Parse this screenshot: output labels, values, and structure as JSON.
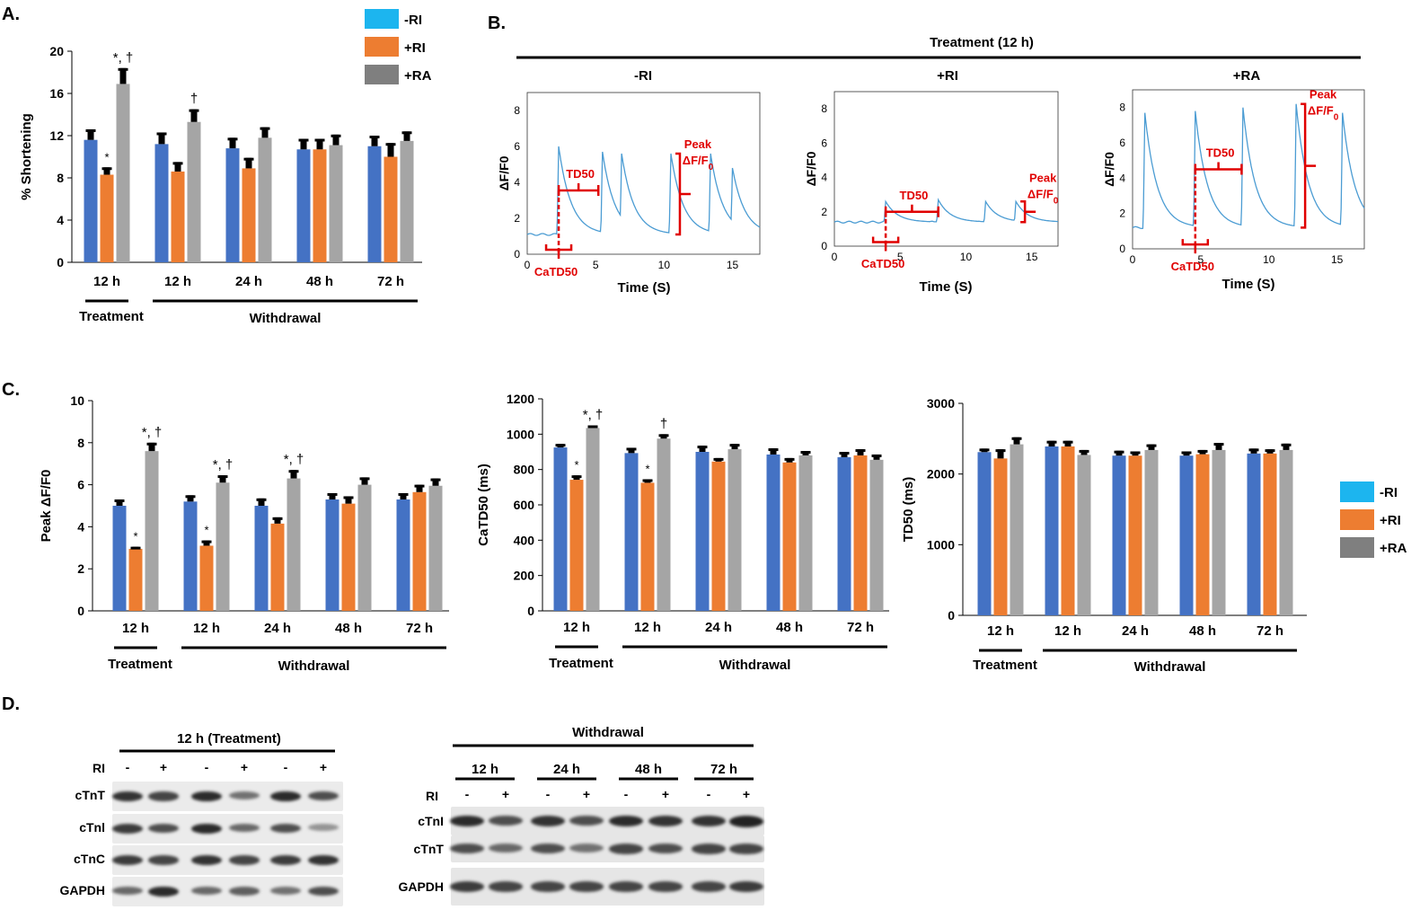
{
  "colors": {
    "blue": "#4472C4",
    "orange": "#ED7D31",
    "gray": "#A5A5A5",
    "legend_blue": "#1CB5EF",
    "legend_gray": "#7F7F7F",
    "red": "#E00000",
    "trace": "#4B9CD3"
  },
  "panel_labels": {
    "a": "A.",
    "b": "B.",
    "c": "C.",
    "d": "D."
  },
  "legend": [
    {
      "label": "-RI"
    },
    {
      "label": "+RI"
    },
    {
      "label": "+RA"
    }
  ],
  "groups": {
    "categories": [
      "12 h",
      "12 h",
      "24 h",
      "48 h",
      "72 h"
    ],
    "treatment": "Treatment",
    "withdrawal": "Withdrawal"
  },
  "chart_data": [
    {
      "id": "shortening",
      "type": "bar",
      "ylabel": "% Shortening",
      "ylim": [
        0,
        20
      ],
      "yticks": [
        0,
        4,
        8,
        12,
        16,
        20
      ],
      "categories": [
        "12 h",
        "12 h",
        "24 h",
        "48 h",
        "72 h"
      ],
      "series": [
        {
          "name": "-RI",
          "values": [
            11.6,
            11.2,
            10.8,
            10.7,
            11.0
          ],
          "errors": [
            1.0,
            1.1,
            1.0,
            1.0,
            1.0
          ]
        },
        {
          "name": "+RI",
          "values": [
            8.3,
            8.6,
            8.9,
            10.7,
            10.0
          ],
          "errors": [
            0.7,
            0.9,
            1.0,
            1.0,
            1.3
          ]
        },
        {
          "name": "+RA",
          "values": [
            16.9,
            13.3,
            11.8,
            11.1,
            11.5
          ],
          "errors": [
            1.5,
            1.2,
            1.0,
            1.0,
            0.9
          ]
        }
      ],
      "annotations": [
        {
          "category": 0,
          "series": 1,
          "text": "*"
        },
        {
          "category": 0,
          "series": 2,
          "text": "*, †"
        },
        {
          "category": 1,
          "series": 2,
          "text": "†"
        }
      ]
    },
    {
      "id": "peak",
      "type": "bar",
      "ylabel": "Peak ΔF/F0",
      "ylim": [
        0,
        10
      ],
      "yticks": [
        0,
        2,
        4,
        6,
        8,
        10
      ],
      "categories": [
        "12 h",
        "12 h",
        "24 h",
        "48 h",
        "72 h"
      ],
      "series": [
        {
          "name": "-RI",
          "values": [
            5.0,
            5.2,
            5.0,
            5.3,
            5.3
          ],
          "errors": [
            0.3,
            0.3,
            0.35,
            0.3,
            0.3
          ]
        },
        {
          "name": "+RI",
          "values": [
            2.95,
            3.1,
            4.15,
            5.1,
            5.65
          ],
          "errors": [
            0.1,
            0.25,
            0.3,
            0.35,
            0.35
          ]
        },
        {
          "name": "+RA",
          "values": [
            7.6,
            6.1,
            6.3,
            6.0,
            5.95
          ],
          "errors": [
            0.4,
            0.35,
            0.4,
            0.35,
            0.35
          ]
        }
      ],
      "annotations": [
        {
          "category": 0,
          "series": 1,
          "text": "*"
        },
        {
          "category": 0,
          "series": 2,
          "text": "*, †"
        },
        {
          "category": 1,
          "series": 1,
          "text": "*"
        },
        {
          "category": 1,
          "series": 2,
          "text": "*, †"
        },
        {
          "category": 2,
          "series": 2,
          "text": "*, †"
        }
      ]
    },
    {
      "id": "catd50",
      "type": "bar",
      "ylabel": "CaTD50 (ms)",
      "ylim": [
        0,
        1200
      ],
      "yticks": [
        0,
        200,
        400,
        600,
        800,
        1000,
        1200
      ],
      "categories": [
        "12 h",
        "12 h",
        "24 h",
        "48 h",
        "72 h"
      ],
      "series": [
        {
          "name": "-RI",
          "values": [
            925,
            893,
            900,
            885,
            870
          ],
          "errors": [
            20,
            30,
            35,
            35,
            30
          ]
        },
        {
          "name": "+RI",
          "values": [
            742,
            725,
            845,
            840,
            880
          ],
          "errors": [
            25,
            20,
            20,
            25,
            35
          ]
        },
        {
          "name": "+RA",
          "values": [
            1035,
            975,
            915,
            880,
            855
          ],
          "errors": [
            15,
            25,
            30,
            25,
            30
          ]
        }
      ],
      "annotations": [
        {
          "category": 0,
          "series": 1,
          "text": "*"
        },
        {
          "category": 0,
          "series": 2,
          "text": "*, †"
        },
        {
          "category": 1,
          "series": 1,
          "text": "*"
        },
        {
          "category": 1,
          "series": 2,
          "text": "†"
        }
      ]
    },
    {
      "id": "td50",
      "type": "bar",
      "ylabel": "TD50 (ms)",
      "ylim": [
        0,
        3000
      ],
      "yticks": [
        0,
        1000,
        2000,
        3000
      ],
      "categories": [
        "12 h",
        "12 h",
        "24 h",
        "48 h",
        "72 h"
      ],
      "series": [
        {
          "name": "-RI",
          "values": [
            2310,
            2390,
            2260,
            2260,
            2290
          ],
          "errors": [
            50,
            80,
            70,
            60,
            70
          ]
        },
        {
          "name": "+RI",
          "values": [
            2220,
            2390,
            2260,
            2280,
            2290
          ],
          "errors": [
            130,
            80,
            60,
            60,
            60
          ]
        },
        {
          "name": "+RA",
          "values": [
            2420,
            2270,
            2340,
            2340,
            2340
          ],
          "errors": [
            100,
            70,
            80,
            100,
            90
          ]
        }
      ],
      "annotations": []
    }
  ],
  "traces": {
    "title": "Treatment (12 h)",
    "ylabel": "ΔF/F0",
    "xlabel": "Time (S)",
    "xticks": [
      0,
      5,
      10,
      15
    ],
    "yticks": [
      0,
      2,
      4,
      6,
      8
    ],
    "xlim": [
      0,
      17
    ],
    "ylim": [
      0,
      9
    ],
    "labels": {
      "td50": "TD50",
      "catd50": "CaTD50",
      "peak": "Peak",
      "df": "ΔF/F"
    },
    "panels": [
      {
        "title": "-RI",
        "peaks": [
          [
            2.3,
            6.0
          ],
          [
            5.5,
            5.7
          ],
          [
            6.9,
            5.6
          ],
          [
            10.5,
            5.6
          ],
          [
            13.4,
            5.6
          ],
          [
            15.0,
            4.8
          ]
        ],
        "base": 1.1
      },
      {
        "title": "+RI",
        "peaks": [
          [
            3.9,
            2.6
          ],
          [
            7.9,
            2.7
          ],
          [
            11.5,
            2.6
          ],
          [
            13.8,
            2.6
          ]
        ],
        "base": 1.4
      },
      {
        "title": "+RA",
        "peaks": [
          [
            0.9,
            7.7
          ],
          [
            4.6,
            7.8
          ],
          [
            8.1,
            8.0
          ],
          [
            12.0,
            8.2
          ],
          [
            15.4,
            7.7
          ]
        ],
        "base": 1.2
      }
    ]
  },
  "blots": {
    "left_title": "12 h (Treatment)",
    "right_title": "Withdrawal",
    "ri_label": "RI",
    "ri_signs": [
      "-",
      "+",
      "-",
      "+",
      "-",
      "+"
    ],
    "ri_signs_right": [
      "-",
      "+",
      "-",
      "+",
      "-",
      "+",
      "-",
      "+"
    ],
    "right_times": [
      "12 h",
      "24 h",
      "48 h",
      "72 h"
    ],
    "left_rows": [
      {
        "label": "cTnT",
        "intensities": [
          0.85,
          0.75,
          0.9,
          0.5,
          0.9,
          0.7
        ]
      },
      {
        "label": "cTnl",
        "intensities": [
          0.8,
          0.7,
          0.9,
          0.55,
          0.7,
          0.3
        ]
      },
      {
        "label": "cTnC",
        "intensities": [
          0.8,
          0.75,
          0.85,
          0.75,
          0.8,
          0.85
        ]
      },
      {
        "label": "GAPDH",
        "intensities": [
          0.55,
          0.9,
          0.55,
          0.6,
          0.5,
          0.7
        ]
      }
    ],
    "right_rows": [
      {
        "label": "cTnI",
        "intensities": [
          0.9,
          0.7,
          0.85,
          0.7,
          0.9,
          0.85,
          0.85,
          0.95
        ]
      },
      {
        "label": "cTnT",
        "intensities": [
          0.7,
          0.55,
          0.7,
          0.5,
          0.75,
          0.7,
          0.75,
          0.75
        ]
      },
      {
        "label": "GAPDH",
        "intensities": [
          0.8,
          0.75,
          0.75,
          0.75,
          0.75,
          0.75,
          0.75,
          0.8
        ]
      }
    ]
  }
}
